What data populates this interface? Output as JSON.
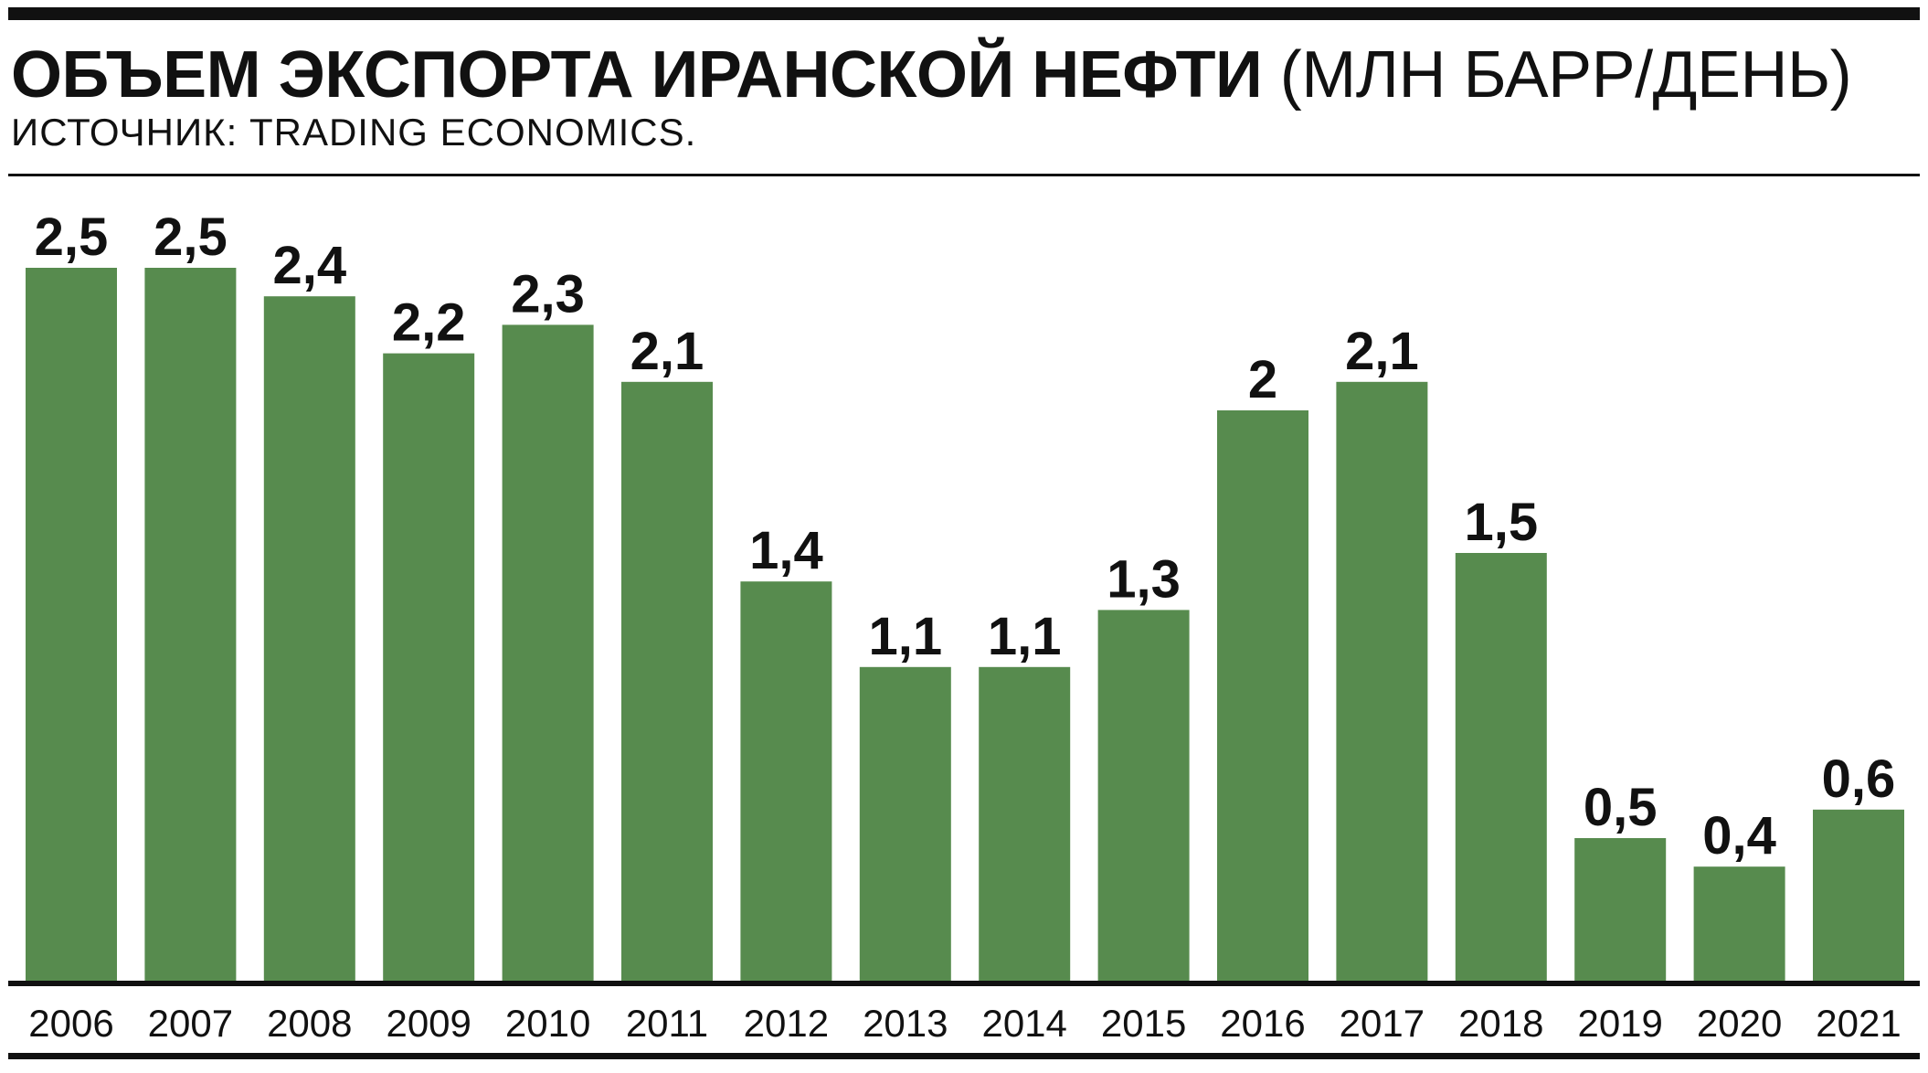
{
  "header": {
    "title_bold": "ОБЪЕМ ЭКСПОРТА ИРАНСКОЙ НЕФТИ",
    "title_unit": "(МЛН БАРР/ДЕНЬ)",
    "source": "ИСТОЧНИК: TRADING ECONOMICS."
  },
  "chart_data": {
    "type": "bar",
    "categories": [
      "2006",
      "2007",
      "2008",
      "2009",
      "2010",
      "2011",
      "2012",
      "2013",
      "2014",
      "2015",
      "2016",
      "2017",
      "2018",
      "2019",
      "2020",
      "2021"
    ],
    "values": [
      2.5,
      2.5,
      2.4,
      2.2,
      2.3,
      2.1,
      1.4,
      1.1,
      1.1,
      1.3,
      2.0,
      2.1,
      1.5,
      0.5,
      0.4,
      0.6
    ],
    "value_labels": [
      "2,5",
      "2,5",
      "2,4",
      "2,2",
      "2,3",
      "2,1",
      "1,4",
      "1,1",
      "1,1",
      "1,3",
      "2",
      "2,1",
      "1,5",
      "0,5",
      "0,4",
      "0,6"
    ],
    "ylim": [
      0,
      2.5
    ],
    "grid": false,
    "legend": "none",
    "bar_color": "#578b4e"
  }
}
